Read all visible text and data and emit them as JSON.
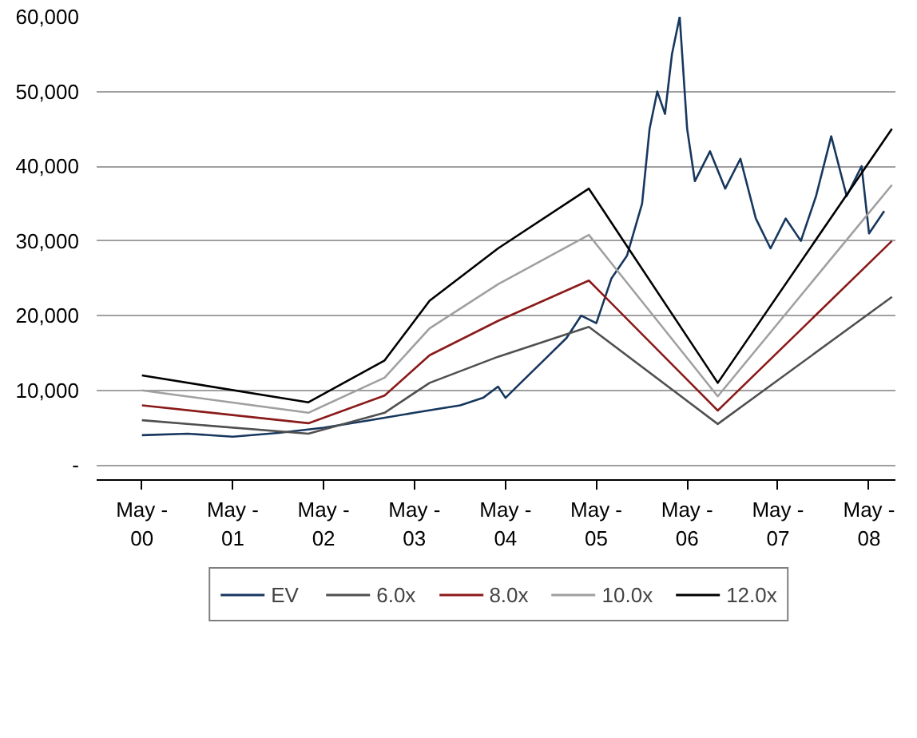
{
  "chart_data": {
    "type": "line",
    "legend": "bottom",
    "grid": "y",
    "line_style": "solid",
    "marker": "none",
    "xlim": [
      "1999-11-01",
      "2008-08-15"
    ],
    "xticks": [
      {
        "value": "2000-05-01",
        "label": "May -\n00"
      },
      {
        "value": "2001-05-01",
        "label": "May -\n01"
      },
      {
        "value": "2002-05-01",
        "label": "May -\n02"
      },
      {
        "value": "2003-05-01",
        "label": "May -\n03"
      },
      {
        "value": "2004-05-01",
        "label": "May -\n04"
      },
      {
        "value": "2005-05-01",
        "label": "May -\n05"
      },
      {
        "value": "2006-05-01",
        "label": "May -\n06"
      },
      {
        "value": "2007-05-01",
        "label": "May -\n07"
      },
      {
        "value": "2008-05-01",
        "label": "May -\n08"
      }
    ],
    "ylim": [
      -2000,
      60000
    ],
    "yticks": [
      {
        "value": 0,
        "label": "-"
      },
      {
        "value": 10000,
        "label": "10,000"
      },
      {
        "value": 20000,
        "label": "20,000"
      },
      {
        "value": 30000,
        "label": "30,000"
      },
      {
        "value": 40000,
        "label": "40,000"
      },
      {
        "value": 50000,
        "label": "50,000"
      },
      {
        "value": 60000,
        "label": "60,000"
      }
    ],
    "series": [
      {
        "name": "EV",
        "color": "#17375e",
        "x": [
          "2000-05",
          "2000-11",
          "2001-05",
          "2001-11",
          "2002-05",
          "2002-11",
          "2003-05",
          "2003-11",
          "2004-02",
          "2004-04",
          "2004-05",
          "2004-07",
          "2004-10",
          "2005-01",
          "2005-03",
          "2005-05",
          "2005-07",
          "2005-09",
          "2005-11",
          "2005-12",
          "2006-01",
          "2006-02",
          "2006-03",
          "2006-04",
          "2006-05",
          "2006-06",
          "2006-08",
          "2006-10",
          "2006-12",
          "2007-02",
          "2007-04",
          "2007-06",
          "2007-08",
          "2007-10",
          "2007-12",
          "2008-02",
          "2008-04",
          "2008-05",
          "2008-07"
        ],
        "values": [
          4000,
          4200,
          3800,
          4300,
          5000,
          6000,
          7000,
          8000,
          9000,
          10500,
          9000,
          11000,
          14000,
          17000,
          20000,
          19000,
          25000,
          28000,
          35000,
          45000,
          50000,
          47000,
          55000,
          60000,
          45000,
          38000,
          42000,
          37000,
          41000,
          33000,
          29000,
          33000,
          30000,
          36000,
          44000,
          36000,
          40000,
          31000,
          34000
        ]
      },
      {
        "name": "6.0x",
        "color": "#505050",
        "x": [
          "2000-05",
          "2002-03",
          "2003-01",
          "2003-07",
          "2004-04",
          "2005-04",
          "2006-09",
          "2008-08"
        ],
        "values": [
          6000,
          4200,
          7000,
          11000,
          14500,
          18500,
          5500,
          22500
        ]
      },
      {
        "name": "8.0x",
        "color": "#8b1a1a",
        "x": [
          "2000-05",
          "2002-03",
          "2003-01",
          "2003-07",
          "2004-04",
          "2005-04",
          "2006-09",
          "2008-08"
        ],
        "values": [
          8000,
          5600,
          9300,
          14700,
          19300,
          24700,
          7300,
          30000
        ]
      },
      {
        "name": "10.0x",
        "color": "#a0a0a0",
        "x": [
          "2000-05",
          "2002-03",
          "2003-01",
          "2003-07",
          "2004-04",
          "2005-04",
          "2006-09",
          "2008-08"
        ],
        "values": [
          10000,
          7000,
          11700,
          18300,
          24200,
          30800,
          9200,
          37500
        ]
      },
      {
        "name": "12.0x",
        "color": "#000000",
        "x": [
          "2000-05",
          "2002-03",
          "2003-01",
          "2003-07",
          "2004-04",
          "2005-04",
          "2006-09",
          "2008-08"
        ],
        "values": [
          12000,
          8400,
          14000,
          22000,
          29000,
          37000,
          11000,
          45000
        ]
      }
    ]
  }
}
